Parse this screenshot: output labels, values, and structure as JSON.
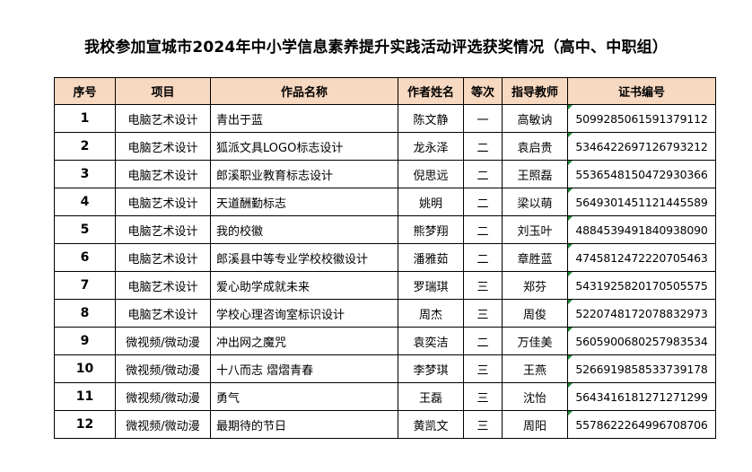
{
  "title": "我校参加宣城市2024年中小学信息素养提升实践活动评选获奖情况（高中、中职组）",
  "headers": [
    "序号",
    "项目",
    "作品名称",
    "作者姓名",
    "等次",
    "指导教师",
    "证书编号"
  ],
  "rows": [
    {
      "no": "1",
      "category": "电脑艺术设计",
      "work": "青出于蓝",
      "author": "陈文静",
      "grade": "一",
      "teacher": "高敏讷",
      "cert": "509928506159137​9112"
    },
    {
      "no": "2",
      "category": "电脑艺术设计",
      "work": "狐派文具LOGO标志设计",
      "author": "龙永泽",
      "grade": "二",
      "teacher": "袁启贵",
      "cert": "534642269712679​3212"
    },
    {
      "no": "3",
      "category": "电脑艺术设计",
      "work": "郎溪职业教育标志设计",
      "author": "倪思远",
      "grade": "二",
      "teacher": "王照磊",
      "cert": "553654815047293​0366"
    },
    {
      "no": "4",
      "category": "电脑艺术设计",
      "work": "天道酬勤标志",
      "author": "姚明",
      "grade": "二",
      "teacher": "梁以萌",
      "cert": "564930145112144​5589"
    },
    {
      "no": "5",
      "category": "电脑艺术设计",
      "work": "我的校徽",
      "author": "熊梦翔",
      "grade": "二",
      "teacher": "刘玉叶",
      "cert": "488453949184093​8090"
    },
    {
      "no": "6",
      "category": "电脑艺术设计",
      "work": "郎溪县中等专业学校校徽设计",
      "author": "潘雅茹",
      "grade": "二",
      "teacher": "章胜蓝",
      "cert": "474581247222070​5463"
    },
    {
      "no": "7",
      "category": "电脑艺术设计",
      "work": "爱心助学成就未来",
      "author": "罗瑞琪",
      "grade": "三",
      "teacher": "郑芬",
      "cert": "543192582017050​5575"
    },
    {
      "no": "8",
      "category": "电脑艺术设计",
      "work": "学校心理咨询室标识设计",
      "author": "周杰",
      "grade": "三",
      "teacher": "周俊",
      "cert": "522074817207883​2973"
    },
    {
      "no": "9",
      "category": "微视频/微动漫",
      "work": "冲出网之魔咒",
      "author": "袁奕洁",
      "grade": "二",
      "teacher": "万佳美",
      "cert": "560590068025798​3534"
    },
    {
      "no": "10",
      "category": "微视频/微动漫",
      "work": "十八而志 熠熠青春",
      "author": "李梦琪",
      "grade": "三",
      "teacher": "王燕",
      "cert": "526691985853373​9178"
    },
    {
      "no": "11",
      "category": "微视频/微动漫",
      "work": "勇气",
      "author": "王磊",
      "grade": "三",
      "teacher": "沈怡",
      "cert": "564341618127127​1299"
    },
    {
      "no": "12",
      "category": "微视频/微动漫",
      "work": "最期待的节日",
      "author": "黄凯文",
      "grade": "三",
      "teacher": "周阳",
      "cert": "557862226499670​8706"
    }
  ],
  "colors": {
    "header_bg": "#f7d8c0",
    "cert_mark": "#1f8a3a"
  }
}
